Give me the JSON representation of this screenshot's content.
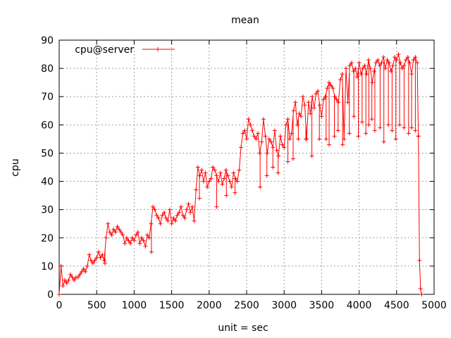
{
  "chart_data": {
    "type": "line",
    "title": "mean",
    "xlabel": "unit = sec",
    "ylabel": "cpu",
    "xlim": [
      0,
      5000
    ],
    "ylim": [
      0,
      90
    ],
    "xticks": [
      0,
      500,
      1000,
      1500,
      2000,
      2500,
      3000,
      3500,
      4000,
      4500,
      5000
    ],
    "yticks": [
      0,
      10,
      20,
      30,
      40,
      50,
      60,
      70,
      80,
      90
    ],
    "grid": true,
    "legend_position": "top-left",
    "marker": "plus",
    "series": [
      {
        "name": "cpu@server",
        "color": "#ff0000",
        "x": [
          0,
          25,
          50,
          75,
          100,
          125,
          150,
          175,
          200,
          225,
          250,
          275,
          300,
          325,
          350,
          375,
          400,
          425,
          450,
          475,
          500,
          525,
          550,
          575,
          600,
          625,
          650,
          675,
          700,
          725,
          750,
          775,
          800,
          825,
          850,
          875,
          900,
          925,
          950,
          975,
          1000,
          1025,
          1050,
          1075,
          1100,
          1125,
          1150,
          1175,
          1200,
          1225,
          1250,
          1275,
          1300,
          1325,
          1350,
          1375,
          1400,
          1425,
          1450,
          1475,
          1500,
          1525,
          1550,
          1575,
          1600,
          1625,
          1650,
          1675,
          1700,
          1725,
          1750,
          1775,
          1800,
          1825,
          1850,
          1875,
          1900,
          1925,
          1950,
          1975,
          2000,
          2025,
          2050,
          2075,
          2100,
          2125,
          2150,
          2175,
          2200,
          2225,
          2250,
          2275,
          2300,
          2325,
          2350,
          2375,
          2400,
          2425,
          2450,
          2475,
          2500,
          2525,
          2550,
          2575,
          2600,
          2625,
          2650,
          2675,
          2700,
          2725,
          2750,
          2775,
          2800,
          2825,
          2850,
          2875,
          2900,
          2925,
          2950,
          2975,
          3000,
          3025,
          3050,
          3075,
          3100,
          3125,
          3150,
          3175,
          3200,
          3225,
          3250,
          3275,
          3300,
          3325,
          3350,
          3375,
          3400,
          3425,
          3450,
          3475,
          3500,
          3525,
          3550,
          3575,
          3600,
          3625,
          3650,
          3675,
          3700,
          3725,
          3750,
          3775,
          3800,
          3825,
          3850,
          3875,
          3900,
          3925,
          3950,
          3975,
          4000,
          4025,
          4050,
          4075,
          4100,
          4125,
          4150,
          4175,
          4200,
          4225,
          4250,
          4275,
          4300,
          4325,
          4350,
          4375,
          4400,
          4425,
          4450,
          4475,
          4500,
          4525,
          4550,
          4575,
          4600,
          4625,
          4650,
          4675,
          4700,
          4725,
          4750,
          4775,
          4790,
          4805,
          4820,
          4835
        ],
        "y": [
          0,
          10,
          3,
          5,
          4,
          5,
          7,
          6,
          5,
          6,
          6,
          7,
          8,
          9,
          8,
          10,
          14,
          12,
          11,
          12,
          13,
          15,
          13,
          14,
          12,
          20,
          25,
          22,
          21,
          23,
          22,
          24,
          23,
          22,
          21,
          18,
          20,
          19,
          18,
          20,
          19,
          21,
          22,
          18,
          20,
          19,
          17,
          21,
          20,
          25,
          31,
          30,
          28,
          27,
          25,
          28,
          29,
          27,
          26,
          30,
          25,
          27,
          26,
          28,
          29,
          31,
          28,
          27,
          30,
          32,
          29,
          31,
          26,
          37,
          45,
          42,
          44,
          40,
          43,
          38,
          40,
          41,
          45,
          44,
          42,
          40,
          43,
          39,
          41,
          44,
          42,
          40,
          38,
          43,
          41,
          40,
          44,
          52,
          57,
          58,
          55,
          62,
          60,
          58,
          56,
          55,
          57,
          50,
          54,
          62,
          56,
          50,
          55,
          54,
          52,
          58,
          51,
          49,
          56,
          53,
          52,
          60,
          62,
          55,
          57,
          65,
          68,
          60,
          64,
          63,
          70,
          67,
          55,
          68,
          64,
          70,
          66,
          71,
          72,
          67,
          63,
          69,
          70,
          73,
          75,
          74,
          73,
          70,
          69,
          68,
          76,
          78,
          55,
          80,
          68,
          81,
          82,
          79,
          80,
          77,
          82,
          78,
          80,
          81,
          78,
          83,
          80,
          75,
          79,
          82,
          83,
          81,
          82,
          84,
          80,
          83,
          82,
          79,
          81,
          84,
          83,
          85,
          82,
          80,
          81,
          83,
          84,
          82,
          78,
          83,
          84,
          82,
          56,
          12,
          2,
          0
        ]
      },
      {
        "name": "",
        "role": "spikes",
        "color": "#ff0000",
        "x": [
          610,
          1230,
          1870,
          2100,
          2230,
          2345,
          2680,
          2770,
          2850,
          2920,
          3050,
          3120,
          3190,
          3290,
          3370,
          3470,
          3560,
          3600,
          3670,
          3720,
          3780,
          3870,
          3930,
          3990,
          4040,
          4090,
          4130,
          4170,
          4210,
          4280,
          4330,
          4390,
          4440,
          4490,
          4540,
          4600,
          4660,
          4700,
          4750,
          4790
        ],
        "y": [
          11,
          15,
          34,
          31,
          35,
          36,
          38,
          42,
          45,
          43,
          47,
          48,
          55,
          55,
          49,
          55,
          55,
          53,
          56,
          58,
          53,
          57,
          63,
          56,
          61,
          57,
          60,
          62,
          58,
          59,
          54,
          60,
          58,
          55,
          60,
          59,
          57,
          59,
          58,
          56
        ]
      }
    ]
  }
}
